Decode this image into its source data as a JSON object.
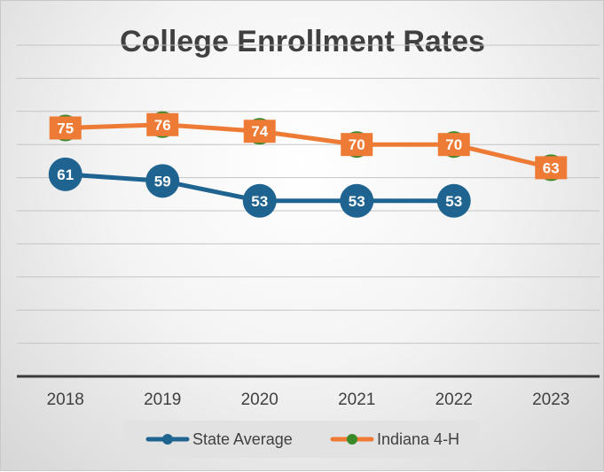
{
  "chart_data": {
    "type": "line",
    "title": "College Enrollment Rates",
    "xlabel": "",
    "ylabel": "",
    "categories": [
      "2018",
      "2019",
      "2020",
      "2021",
      "2022",
      "2023"
    ],
    "ylim": [
      0,
      100
    ],
    "grid": true,
    "legend_position": "bottom",
    "series": [
      {
        "name": "State Average",
        "values": [
          61,
          59,
          53,
          53,
          53,
          null
        ],
        "line_color": "#1f6491",
        "marker_color": "#1f6491",
        "marker": "circle"
      },
      {
        "name": "Indiana 4-H",
        "values": [
          75,
          76,
          74,
          70,
          70,
          63
        ],
        "line_color": "#ee7b35",
        "marker_color": "#ee7b35",
        "marker_outline_color": "#3a8a2a",
        "marker": "square"
      }
    ]
  }
}
